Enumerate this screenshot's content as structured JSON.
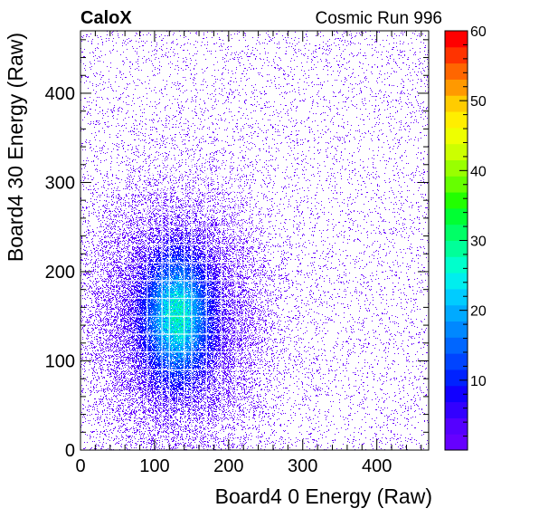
{
  "header": {
    "experiment": "CaloX",
    "run": "Cosmic Run 996"
  },
  "chart_data": {
    "type": "heatmap",
    "title": "",
    "xlabel": "Board4 0 Energy (Raw)",
    "ylabel": "Board4 30 Energy (Raw)",
    "xlim": [
      0,
      470
    ],
    "ylim": [
      0,
      470
    ],
    "zlim": [
      0,
      60
    ],
    "xticks": [
      0,
      100,
      200,
      300,
      400
    ],
    "yticks": [
      0,
      100,
      200,
      300,
      400
    ],
    "zticks": [
      10,
      20,
      30,
      40,
      50,
      60
    ],
    "grid": false,
    "colorbar": "right",
    "palette": [
      "#6600ff",
      "#5500ff",
      "#3300ff",
      "#1100ff",
      "#0022ff",
      "#0044ff",
      "#0066ff",
      "#0088ff",
      "#00aaff",
      "#00ccff",
      "#00eeee",
      "#00ffcc",
      "#00ff99",
      "#00ff66",
      "#00ff33",
      "#22ff00",
      "#66ff00",
      "#99ff00",
      "#ccff00",
      "#eeff00",
      "#ffee00",
      "#ffcc00",
      "#ff9900",
      "#ff6600",
      "#ff3300",
      "#ff0000"
    ],
    "cluster": {
      "x_center": 130,
      "y_center": 150,
      "peak": 22
    },
    "empty_lines": {
      "x": [
        90,
        110,
        120,
        140,
        150,
        170,
        190,
        210
      ],
      "y": [
        90,
        110,
        130,
        150,
        170,
        190,
        210,
        230,
        250,
        270,
        290,
        310
      ]
    }
  }
}
